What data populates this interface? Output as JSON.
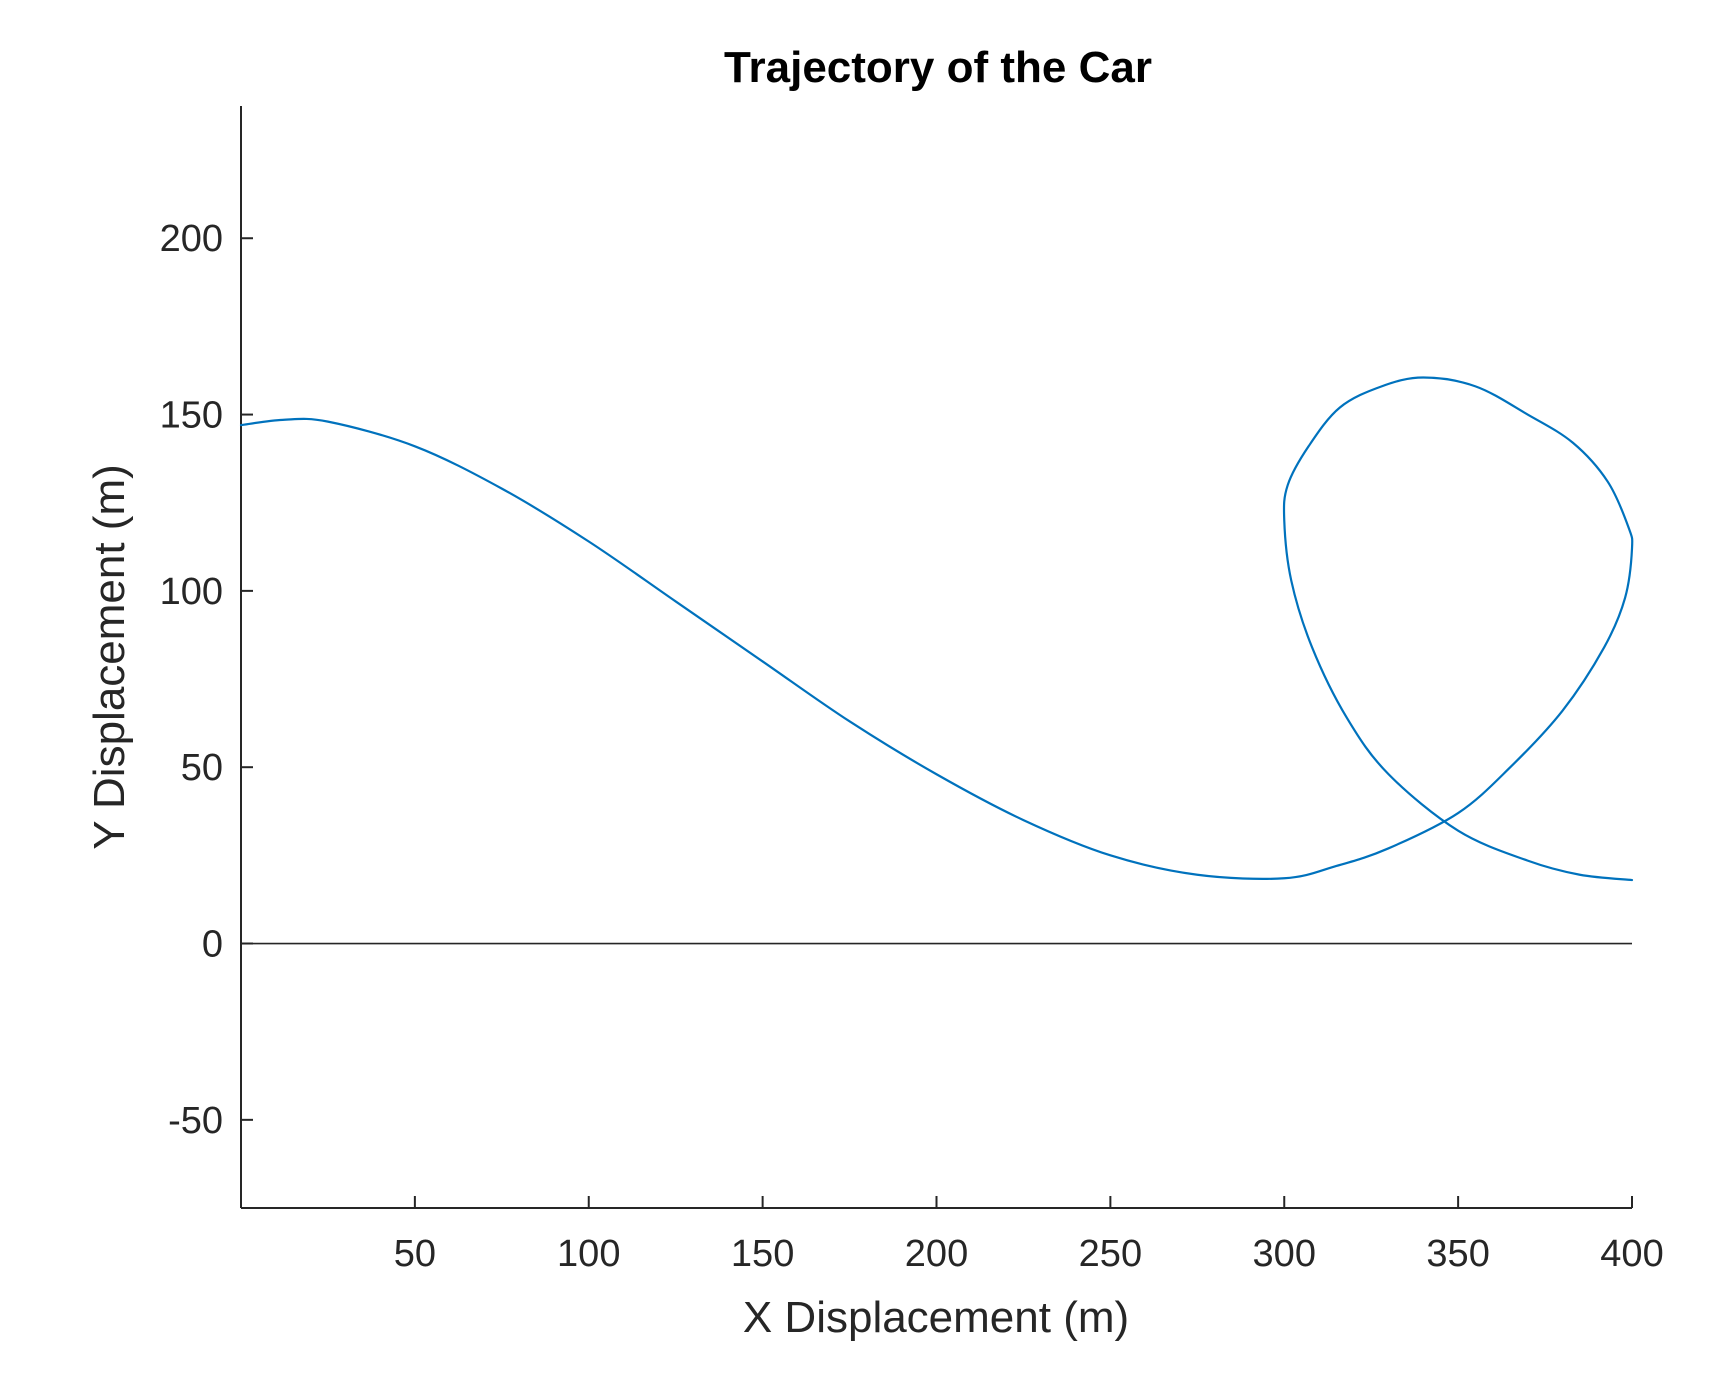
{
  "chart_data": {
    "type": "line",
    "title": "Trajectory of the Car",
    "xlabel": "X Displacement (m)",
    "ylabel": "Y Displacement (m)",
    "xlim": [
      0,
      400
    ],
    "ylim": [
      -75,
      237.5
    ],
    "xticks": [
      50,
      100,
      150,
      200,
      250,
      300,
      350,
      400
    ],
    "yticks": [
      -50,
      0,
      50,
      100,
      150,
      200
    ],
    "xtick_labels": [
      "50",
      "100",
      "150",
      "200",
      "250",
      "300",
      "350",
      "400"
    ],
    "ytick_labels": [
      "-50",
      "0",
      "50",
      "100",
      "150",
      "200"
    ],
    "reference_line": {
      "y": 0,
      "color": "#262626"
    },
    "grid": false,
    "series": [
      {
        "color": "#0072BD",
        "x": [
          0,
          12,
          25,
          50,
          75,
          100,
          125,
          150,
          175,
          200,
          225,
          250,
          275,
          300,
          315,
          330,
          350,
          365,
          380,
          392,
          398,
          400,
          399,
          393,
          383,
          370,
          355,
          340,
          328,
          316,
          307,
          301,
          300,
          302,
          308,
          318,
          330,
          350,
          370,
          385,
          400
        ],
        "y": [
          147,
          148.5,
          148,
          141,
          129,
          114,
          97,
          80,
          63,
          48,
          35,
          25,
          19.5,
          18.5,
          22,
          27,
          37,
          50,
          66,
          84,
          98,
          112,
          118,
          131,
          142,
          150,
          158,
          160.5,
          158,
          152,
          141,
          130,
          120,
          103,
          84,
          64,
          48,
          32,
          23.5,
          19.5,
          18
        ]
      }
    ]
  }
}
